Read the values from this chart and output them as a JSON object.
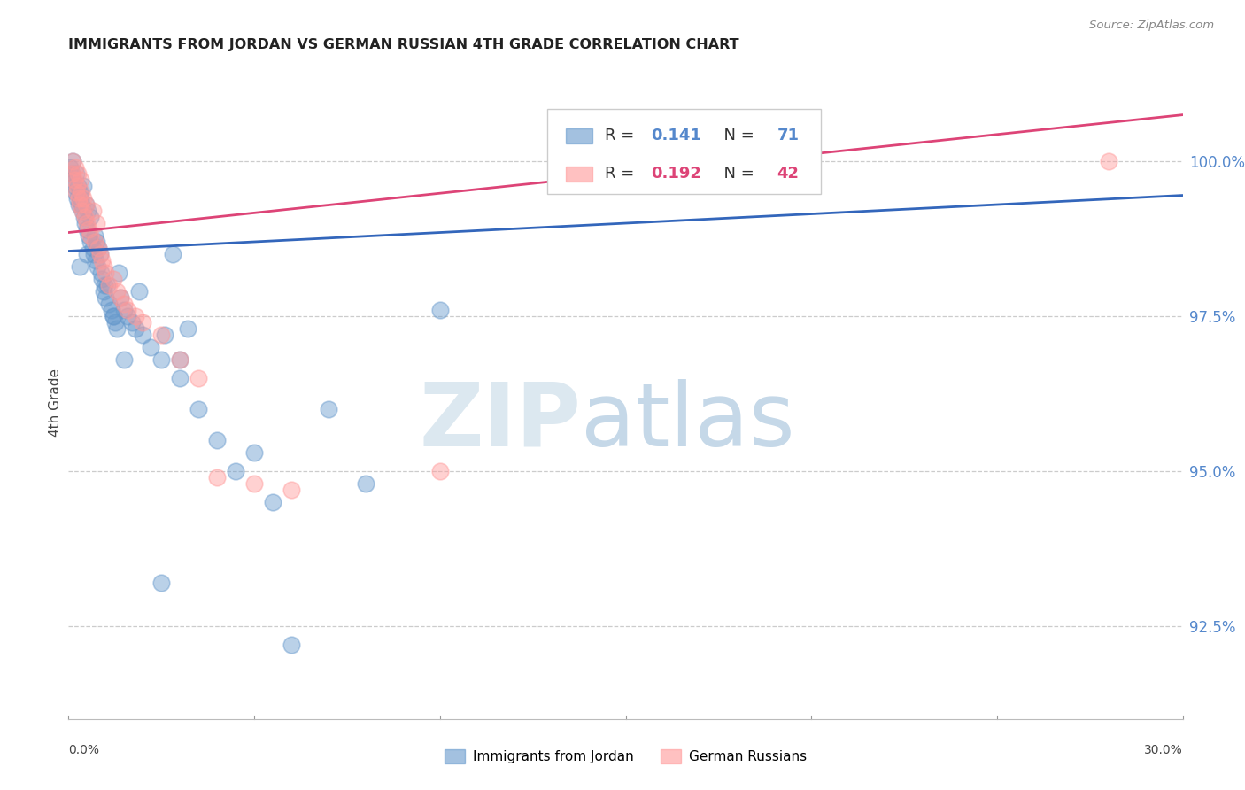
{
  "title": "IMMIGRANTS FROM JORDAN VS GERMAN RUSSIAN 4TH GRADE CORRELATION CHART",
  "source": "Source: ZipAtlas.com",
  "ylabel": "4th Grade",
  "y_ticks": [
    92.5,
    95.0,
    97.5,
    100.0
  ],
  "y_tick_labels": [
    "92.5%",
    "95.0%",
    "97.5%",
    "100.0%"
  ],
  "x_min": 0.0,
  "x_max": 30.0,
  "y_min": 91.0,
  "y_max": 101.2,
  "blue_color": "#6699CC",
  "pink_color": "#FF9999",
  "blue_line_color": "#3366BB",
  "pink_line_color": "#DD4477",
  "R_blue": 0.141,
  "N_blue": 71,
  "R_pink": 0.192,
  "N_pink": 42,
  "legend_label_blue": "Immigrants from Jordan",
  "legend_label_pink": "German Russians",
  "blue_x": [
    0.05,
    0.08,
    0.1,
    0.12,
    0.15,
    0.18,
    0.2,
    0.22,
    0.25,
    0.28,
    0.3,
    0.32,
    0.35,
    0.38,
    0.4,
    0.42,
    0.45,
    0.48,
    0.5,
    0.52,
    0.55,
    0.58,
    0.6,
    0.65,
    0.68,
    0.7,
    0.72,
    0.75,
    0.78,
    0.8,
    0.85,
    0.88,
    0.9,
    0.95,
    0.98,
    1.0,
    1.05,
    1.1,
    1.15,
    1.2,
    1.25,
    1.3,
    1.35,
    1.4,
    1.5,
    1.6,
    1.7,
    1.8,
    1.9,
    2.0,
    2.2,
    2.5,
    2.8,
    3.0,
    3.2,
    3.5,
    4.0,
    4.5,
    5.0,
    5.5,
    6.0,
    7.0,
    8.0,
    10.0,
    1.5,
    2.6,
    3.0,
    0.3,
    0.5,
    1.2,
    2.5
  ],
  "blue_y": [
    99.9,
    99.8,
    100.0,
    99.7,
    99.6,
    99.5,
    99.8,
    99.4,
    99.6,
    99.3,
    99.5,
    99.4,
    99.3,
    99.2,
    99.6,
    99.1,
    99.0,
    99.3,
    98.9,
    99.2,
    98.8,
    99.1,
    98.7,
    98.6,
    98.5,
    98.8,
    98.4,
    98.7,
    98.3,
    98.6,
    98.5,
    98.2,
    98.1,
    97.9,
    98.0,
    97.8,
    98.0,
    97.7,
    97.6,
    97.5,
    97.4,
    97.3,
    98.2,
    97.8,
    97.6,
    97.5,
    97.4,
    97.3,
    97.9,
    97.2,
    97.0,
    96.8,
    98.5,
    96.5,
    97.3,
    96.0,
    95.5,
    95.0,
    95.3,
    94.5,
    92.2,
    96.0,
    94.8,
    97.6,
    96.8,
    97.2,
    96.8,
    98.3,
    98.5,
    97.5,
    93.2
  ],
  "pink_x": [
    0.08,
    0.1,
    0.15,
    0.18,
    0.2,
    0.22,
    0.25,
    0.28,
    0.3,
    0.32,
    0.35,
    0.38,
    0.4,
    0.45,
    0.48,
    0.5,
    0.55,
    0.6,
    0.65,
    0.7,
    0.75,
    0.8,
    0.85,
    0.9,
    0.95,
    1.0,
    1.1,
    1.2,
    1.3,
    1.4,
    1.5,
    1.6,
    1.8,
    2.0,
    2.5,
    3.0,
    3.5,
    4.0,
    5.0,
    6.0,
    10.0,
    28.0
  ],
  "pink_y": [
    99.8,
    100.0,
    99.7,
    99.9,
    99.5,
    99.6,
    99.8,
    99.4,
    99.3,
    99.7,
    99.5,
    99.2,
    99.4,
    99.1,
    99.3,
    99.0,
    98.9,
    98.8,
    99.2,
    98.7,
    99.0,
    98.6,
    98.5,
    98.4,
    98.3,
    98.2,
    98.0,
    98.1,
    97.9,
    97.8,
    97.7,
    97.6,
    97.5,
    97.4,
    97.2,
    96.8,
    96.5,
    94.9,
    94.8,
    94.7,
    95.0,
    100.0
  ],
  "blue_trend_x": [
    0.0,
    30.0
  ],
  "blue_trend_y": [
    98.55,
    99.45
  ],
  "pink_trend_x": [
    0.0,
    30.0
  ],
  "pink_trend_y": [
    98.85,
    100.75
  ]
}
